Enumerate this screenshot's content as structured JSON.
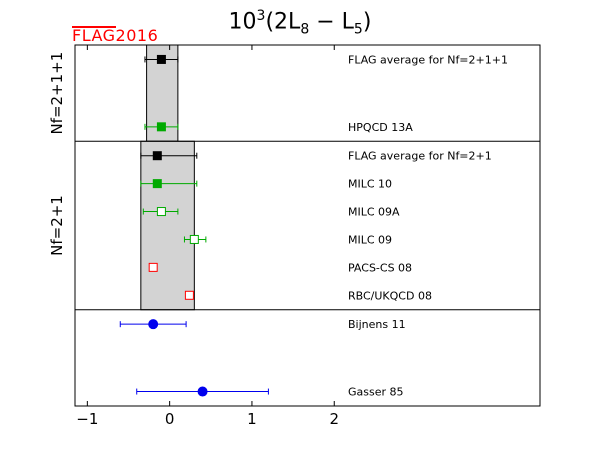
{
  "chart_data": {
    "type": "scatter",
    "title": "10³(2L₈ − L₅)",
    "title_parts": {
      "base": "10",
      "exp": "3",
      "open": "(2L",
      "sub1": "8",
      "minus": " − L",
      "sub2": "5",
      "close": ")"
    },
    "logo": "FLAG2016",
    "xlim": [
      -1.15,
      4.5
    ],
    "xticks": [
      -1,
      0,
      1,
      2
    ],
    "xtick_labels": [
      "−1",
      "0",
      "1",
      "2"
    ],
    "groups": [
      {
        "label": "Nf=2+1+1",
        "band": {
          "min": -0.28,
          "max": 0.1,
          "color": "#d3d3d3"
        },
        "entries": [
          {
            "label": "FLAG average for Nf=2+1+1",
            "value": -0.1,
            "err_low": 0.2,
            "err_high": 0.2,
            "marker": "square",
            "filled": true,
            "color": "#000000"
          },
          {
            "label": "HPQCD 13A",
            "value": -0.1,
            "err_low": 0.2,
            "err_high": 0.2,
            "marker": "square",
            "filled": true,
            "color": "#00aa00"
          }
        ]
      },
      {
        "label": "Nf=2+1",
        "band": {
          "min": -0.35,
          "max": 0.3,
          "color": "#d3d3d3"
        },
        "entries": [
          {
            "label": "FLAG average for Nf=2+1",
            "value": -0.15,
            "err_low": 0.2,
            "err_high": 0.48,
            "marker": "square",
            "filled": true,
            "color": "#000000"
          },
          {
            "label": "MILC 10",
            "value": -0.15,
            "err_low": 0.2,
            "err_high": 0.48,
            "marker": "square",
            "filled": true,
            "color": "#00aa00"
          },
          {
            "label": "MILC 09A",
            "value": -0.1,
            "err_low": 0.22,
            "err_high": 0.2,
            "marker": "square",
            "filled": false,
            "color": "#00aa00"
          },
          {
            "label": "MILC 09",
            "value": 0.3,
            "err_low": 0.12,
            "err_high": 0.14,
            "marker": "square",
            "filled": false,
            "color": "#00aa00"
          },
          {
            "label": "PACS-CS 08",
            "value": -0.2,
            "err_low": 0,
            "err_high": 0,
            "marker": "square",
            "filled": false,
            "color": "#ff0000"
          },
          {
            "label": "RBC/UKQCD 08",
            "value": 0.24,
            "err_low": 0,
            "err_high": 0,
            "marker": "square",
            "filled": false,
            "color": "#ff0000"
          }
        ]
      },
      {
        "label": "",
        "band": null,
        "entries": [
          {
            "label": "Bijnens 11",
            "value": -0.2,
            "err_low": 0.4,
            "err_high": 0.4,
            "marker": "circle",
            "filled": true,
            "color": "#0000ee"
          },
          {
            "label": "Gasser 85",
            "value": 0.4,
            "err_low": 0.8,
            "err_high": 0.8,
            "marker": "circle",
            "filled": true,
            "color": "#0000ee"
          }
        ]
      }
    ]
  }
}
